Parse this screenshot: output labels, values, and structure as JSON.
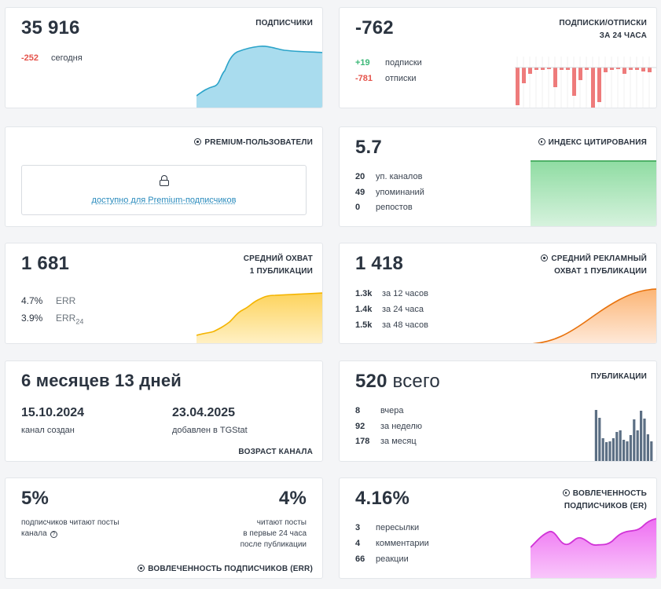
{
  "subscribers": {
    "value": "35 916",
    "title": "ПОДПИСЧИКИ",
    "today_delta": "-252",
    "today_label": "сегодня"
  },
  "subs_unsubs": {
    "value": "-762",
    "title_line1": "ПОДПИСКИ/ОТПИСКИ",
    "title_line2": "ЗА 24 ЧАСА",
    "subs_count": "+19",
    "subs_label": "подписки",
    "unsubs_count": "-781",
    "unsubs_label": "отписки"
  },
  "premium": {
    "title": "PREMIUM-ПОЛЬЗОВАТЕЛИ",
    "link": "доступно для Premium-подписчиков"
  },
  "citation": {
    "value": "5.7",
    "title": "ИНДЕКС ЦИТИРОВАНИЯ",
    "rows": [
      {
        "num": "20",
        "label": "уп. каналов"
      },
      {
        "num": "49",
        "label": "упоминаний"
      },
      {
        "num": "0",
        "label": "репостов"
      }
    ]
  },
  "reach": {
    "value": "1 681",
    "title_line1": "СРЕДНИЙ ОХВАТ",
    "title_line2": "1 ПУБЛИКАЦИИ",
    "err_value": "4.7%",
    "err_label": "ERR",
    "err24_value": "3.9%",
    "err24_label": "ERR",
    "err24_sub": "24"
  },
  "ad_reach": {
    "value": "1 418",
    "title_line1": "СРЕДНИЙ РЕКЛАМНЫЙ",
    "title_line2": "ОХВАТ 1 ПУБЛИКАЦИИ",
    "rows": [
      {
        "num": "1.3k",
        "label": "за 12 часов"
      },
      {
        "num": "1.4k",
        "label": "за 24 часа"
      },
      {
        "num": "1.5k",
        "label": "за 48 часов"
      }
    ]
  },
  "age": {
    "value": "6 месяцев 13 дней",
    "created_date": "15.10.2024",
    "created_label": "канал создан",
    "added_date": "23.04.2025",
    "added_label": "добавлен в TGStat",
    "title": "ВОЗРАСТ КАНАЛА"
  },
  "publications": {
    "value_num": "520",
    "value_label": "всего",
    "title": "ПУБЛИКАЦИИ",
    "rows": [
      {
        "num": "8",
        "label": "вчера"
      },
      {
        "num": "92",
        "label": "за неделю"
      },
      {
        "num": "178",
        "label": "за месяц"
      }
    ]
  },
  "err_block": {
    "left_value": "5%",
    "left_text_line1": "подписчиков читают посты",
    "left_text_line2": "канала",
    "right_value": "4%",
    "right_text_line1": "читают посты",
    "right_text_line2": "в первые 24 часа",
    "right_text_line3": "после публикации",
    "title": "ВОВЛЕЧЕННОСТЬ ПОДПИСЧИКОВ (ERR)"
  },
  "er_block": {
    "value": "4.16%",
    "title_line1": "ВОВЛЕЧЕННОСТЬ",
    "title_line2": "ПОДПИСЧИКОВ (ER)",
    "rows": [
      {
        "num": "3",
        "label": "пересылки"
      },
      {
        "num": "4",
        "label": "комментарии"
      },
      {
        "num": "66",
        "label": "реакции"
      }
    ]
  },
  "colors": {
    "red": "#e5534b",
    "green": "#3cb878",
    "blue_fill": "#9fd8ec",
    "blue_line": "#2aa3c9",
    "green_fill": "#a6e4b6",
    "green_line": "#2e9e4a",
    "yellow_fill": "#fde08a",
    "yellow_line": "#f4b400",
    "orange_fill": "#fdc794",
    "orange_line": "#e8720c",
    "bar_blue": "#5c6f84",
    "pink_fill": "#f27ef5",
    "pink_line": "#d033d6"
  }
}
